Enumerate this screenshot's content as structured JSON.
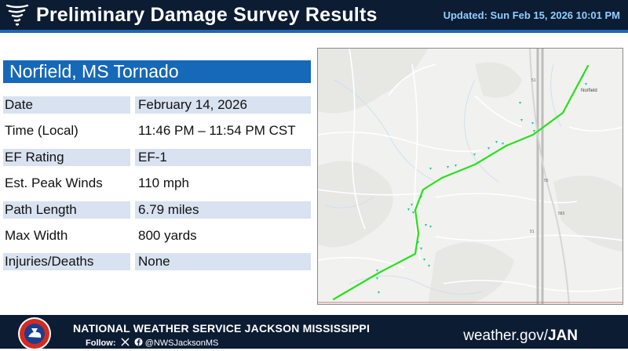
{
  "header": {
    "title": "Preliminary Damage Survey Results",
    "updated": "Updated: Sun Feb 15, 2026 10:01 PM",
    "icon": "tornado-icon"
  },
  "tornado": {
    "title": "Norfield, MS Tornado",
    "rows": [
      {
        "label": "Date",
        "value": "February 14, 2026"
      },
      {
        "label": "Time (Local)",
        "value": "11:46 PM – 11:54 PM CST"
      },
      {
        "label": "EF Rating",
        "value": "EF-1"
      },
      {
        "label": "Est. Peak Winds",
        "value": "110 mph"
      },
      {
        "label": "Path Length",
        "value": "6.79 miles"
      },
      {
        "label": "Max Width",
        "value": "800 yards"
      },
      {
        "label": "Injuries/Deaths",
        "value": "None"
      }
    ]
  },
  "map": {
    "town_label": "Norfield",
    "highway_labels": [
      "51",
      "55",
      "583",
      "51"
    ],
    "colors": {
      "track": "#27e01b",
      "damage_point": "#19c9a0",
      "roads": "#ffffff",
      "highway": "#cfcfcf",
      "county_line": "#d08080"
    }
  },
  "footer": {
    "org": "NATIONAL WEATHER SERVICE JACKSON MISSISSIPPI",
    "follow_label": "Follow:",
    "handle": "@NWSJacksonMS",
    "url_prefix": "weather.gov/",
    "url_office": "JAN",
    "icons": [
      "nws-logo",
      "x-icon",
      "facebook-icon"
    ]
  }
}
